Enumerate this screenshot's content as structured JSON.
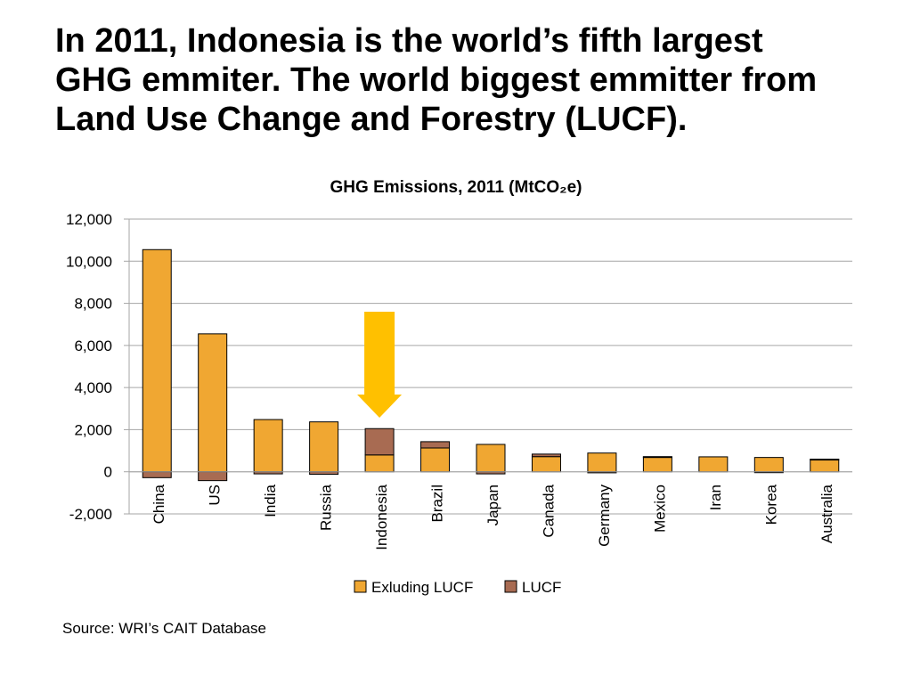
{
  "slide": {
    "headline_lines": [
      "In 2011, Indonesia is the world’s fifth largest",
      "GHG emmiter. The world biggest emmitter from",
      "Land Use Change and Forestry (LUCF)."
    ],
    "source": "Source: WRI’s CAIT Database"
  },
  "colors": {
    "excluding_lucf": "#F0A732",
    "lucf": "#A86B52",
    "highlight_arrow": "#FFC000",
    "gridline": "#A6A6A6",
    "bar_outline": "#000000"
  },
  "chart_data": {
    "type": "bar",
    "stacked": true,
    "title": "GHG Emissions, 2011 (MtCO₂e)",
    "xlabel": "",
    "ylabel": "",
    "ylim": [
      -2000,
      12000
    ],
    "yticks": [
      -2000,
      0,
      2000,
      4000,
      6000,
      8000,
      10000,
      12000
    ],
    "ytick_labels": [
      "-2,000",
      "0",
      "2,000",
      "4,000",
      "6,000",
      "8,000",
      "10,000",
      "12,000"
    ],
    "grid": true,
    "legend_position": "bottom",
    "categories": [
      "China",
      "US",
      "India",
      "Russia",
      "Indonesia",
      "Brazil",
      "Japan",
      "Canada",
      "Germany",
      "Mexico",
      "Iran",
      "Korea",
      "Australia"
    ],
    "series": [
      {
        "name": "Exluding LUCF",
        "color_key": "excluding_lucf",
        "values": [
          10550,
          6550,
          2480,
          2370,
          800,
          1130,
          1300,
          720,
          890,
          700,
          710,
          680,
          580
        ]
      },
      {
        "name": "LUCF",
        "color_key": "lucf",
        "values": [
          -280,
          -420,
          -100,
          -120,
          1250,
          300,
          -100,
          120,
          -50,
          20,
          0,
          -30,
          20
        ]
      }
    ],
    "highlight": {
      "category": "Indonesia",
      "marker": "down-arrow"
    }
  }
}
